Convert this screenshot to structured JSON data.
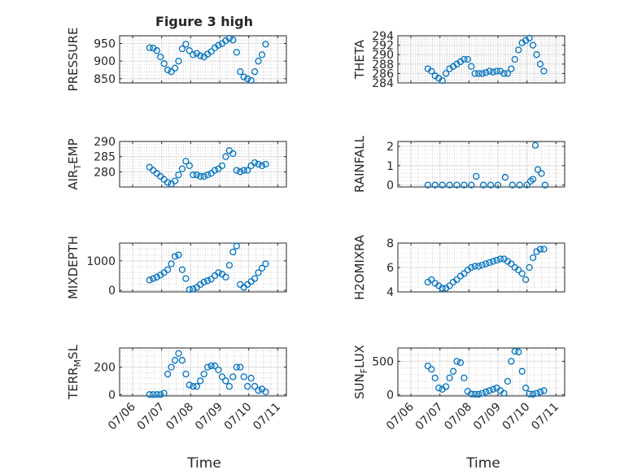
{
  "title": "Figure 3 high",
  "xlabel": "Time",
  "xticks": [
    "07/06",
    "07/07",
    "07/08",
    "07/09",
    "07/10",
    "07/11"
  ],
  "marker_color": "#0072BD",
  "chart_data": [
    {
      "type": "scatter",
      "ylabel": "PRESSURE",
      "ylim": [
        838,
        972
      ],
      "yticks": [
        850,
        900,
        950
      ],
      "grid": true,
      "x": [
        "07/06 14:00",
        "07/06 17:00",
        "07/06 20:00",
        "07/06 23:00",
        "07/07 02:00",
        "07/07 05:00",
        "07/07 08:00",
        "07/07 11:00",
        "07/07 14:00",
        "07/07 17:00",
        "07/07 20:00",
        "07/07 23:00",
        "07/08 02:00",
        "07/08 05:00",
        "07/08 08:00",
        "07/08 11:00",
        "07/08 14:00",
        "07/08 17:00",
        "07/08 20:00",
        "07/08 23:00",
        "07/09 02:00",
        "07/09 05:00",
        "07/09 08:00",
        "07/09 11:00",
        "07/09 14:00",
        "07/09 17:00",
        "07/09 20:00",
        "07/09 23:00",
        "07/10 02:00",
        "07/10 05:00",
        "07/10 08:00",
        "07/10 11:00",
        "07/10 14:00"
      ],
      "y": [
        938,
        937,
        930,
        912,
        893,
        875,
        870,
        880,
        900,
        935,
        948,
        930,
        918,
        922,
        915,
        912,
        920,
        927,
        938,
        945,
        950,
        958,
        965,
        960,
        925,
        870,
        855,
        850,
        845,
        870,
        900,
        918,
        948
      ]
    },
    {
      "type": "scatter",
      "ylabel": "THETA",
      "ylim": [
        284,
        294
      ],
      "yticks": [
        284,
        286,
        288,
        290,
        292,
        294
      ],
      "grid": true,
      "x": [
        "07/06 14:00",
        "07/06 17:00",
        "07/06 20:00",
        "07/06 23:00",
        "07/07 02:00",
        "07/07 05:00",
        "07/07 08:00",
        "07/07 11:00",
        "07/07 14:00",
        "07/07 17:00",
        "07/07 20:00",
        "07/07 23:00",
        "07/08 02:00",
        "07/08 05:00",
        "07/08 08:00",
        "07/08 11:00",
        "07/08 14:00",
        "07/08 17:00",
        "07/08 20:00",
        "07/08 23:00",
        "07/09 02:00",
        "07/09 05:00",
        "07/09 08:00",
        "07/09 11:00",
        "07/09 14:00",
        "07/09 17:00",
        "07/09 20:00",
        "07/09 23:00",
        "07/10 02:00",
        "07/10 05:00",
        "07/10 08:00",
        "07/10 11:00",
        "07/10 14:00"
      ],
      "y": [
        287,
        286.5,
        285.5,
        285,
        284.5,
        286,
        287,
        287.5,
        288,
        288.5,
        289,
        289,
        287.5,
        286,
        286,
        286,
        286.2,
        286.5,
        286.3,
        286.5,
        286.5,
        286,
        286,
        287,
        289,
        291,
        292.5,
        293,
        293.5,
        292,
        290,
        288,
        286.5
      ]
    },
    {
      "type": "scatter",
      "ylabel": "AIR_TEMP",
      "ylim": [
        275,
        290
      ],
      "yticks": [
        280,
        285,
        290
      ],
      "grid": true,
      "x": [
        "07/06 14:00",
        "07/06 17:00",
        "07/06 20:00",
        "07/06 23:00",
        "07/07 02:00",
        "07/07 05:00",
        "07/07 08:00",
        "07/07 11:00",
        "07/07 14:00",
        "07/07 17:00",
        "07/07 20:00",
        "07/07 23:00",
        "07/08 02:00",
        "07/08 05:00",
        "07/08 08:00",
        "07/08 11:00",
        "07/08 14:00",
        "07/08 17:00",
        "07/08 20:00",
        "07/08 23:00",
        "07/09 02:00",
        "07/09 05:00",
        "07/09 08:00",
        "07/09 11:00",
        "07/09 14:00",
        "07/09 17:00",
        "07/09 20:00",
        "07/09 23:00",
        "07/10 02:00",
        "07/10 05:00",
        "07/10 08:00",
        "07/10 11:00",
        "07/10 14:00"
      ],
      "y": [
        281.5,
        280.5,
        279.5,
        278.5,
        277.5,
        276.5,
        276,
        277,
        279,
        281,
        283.5,
        282,
        279,
        279,
        278.5,
        278.5,
        279,
        279.5,
        280.5,
        281,
        282,
        285,
        287,
        286,
        280.5,
        280,
        280.5,
        280.5,
        282,
        283,
        282.5,
        282,
        282.5
      ]
    },
    {
      "type": "scatter",
      "ylabel": "RAINFALL",
      "ylim": [
        -0.1,
        2.25
      ],
      "yticks": [
        0,
        1,
        2
      ],
      "grid": true,
      "x": [
        "07/06 14:00",
        "07/06 20:00",
        "07/07 02:00",
        "07/07 08:00",
        "07/07 14:00",
        "07/07 20:00",
        "07/08 02:00",
        "07/08 06:00",
        "07/08 12:00",
        "07/08 18:00",
        "07/09 00:00",
        "07/09 06:00",
        "07/09 12:00",
        "07/09 18:00",
        "07/10 00:00",
        "07/10 03:00",
        "07/10 05:00",
        "07/10 07:00",
        "07/10 09:00",
        "07/10 12:00",
        "07/10 15:00"
      ],
      "y": [
        0,
        0,
        0,
        0,
        0,
        0,
        0,
        0.45,
        0,
        0,
        0,
        0.4,
        0,
        0,
        0,
        0.2,
        0.3,
        2.05,
        0.8,
        0.6,
        0
      ]
    },
    {
      "type": "scatter",
      "ylabel": "MIXDEPTH",
      "ylim": [
        -50,
        1600
      ],
      "yticks": [
        0,
        1000
      ],
      "grid": true,
      "x": [
        "07/06 14:00",
        "07/06 17:00",
        "07/06 20:00",
        "07/06 23:00",
        "07/07 02:00",
        "07/07 05:00",
        "07/07 08:00",
        "07/07 11:00",
        "07/07 14:00",
        "07/07 17:00",
        "07/07 20:00",
        "07/07 23:00",
        "07/08 02:00",
        "07/08 05:00",
        "07/08 08:00",
        "07/08 11:00",
        "07/08 14:00",
        "07/08 17:00",
        "07/08 20:00",
        "07/08 23:00",
        "07/09 02:00",
        "07/09 05:00",
        "07/09 08:00",
        "07/09 11:00",
        "07/09 14:00",
        "07/09 17:00",
        "07/09 20:00",
        "07/09 23:00",
        "07/10 02:00",
        "07/10 05:00",
        "07/10 08:00",
        "07/10 11:00",
        "07/10 14:00"
      ],
      "y": [
        350,
        400,
        450,
        520,
        600,
        700,
        900,
        1150,
        1200,
        700,
        400,
        30,
        50,
        100,
        200,
        280,
        330,
        380,
        500,
        600,
        550,
        450,
        850,
        1300,
        1500,
        200,
        100,
        200,
        300,
        400,
        600,
        750,
        900
      ]
    },
    {
      "type": "scatter",
      "ylabel": "H2OMIXRA",
      "ylim": [
        4,
        8
      ],
      "yticks": [
        4,
        6,
        8
      ],
      "grid": true,
      "x": [
        "07/06 14:00",
        "07/06 17:00",
        "07/06 20:00",
        "07/06 23:00",
        "07/07 02:00",
        "07/07 05:00",
        "07/07 08:00",
        "07/07 11:00",
        "07/07 14:00",
        "07/07 17:00",
        "07/07 20:00",
        "07/07 23:00",
        "07/08 02:00",
        "07/08 05:00",
        "07/08 08:00",
        "07/08 11:00",
        "07/08 14:00",
        "07/08 17:00",
        "07/08 20:00",
        "07/08 23:00",
        "07/09 02:00",
        "07/09 05:00",
        "07/09 08:00",
        "07/09 11:00",
        "07/09 14:00",
        "07/09 17:00",
        "07/09 20:00",
        "07/09 23:00",
        "07/10 02:00",
        "07/10 05:00",
        "07/10 08:00",
        "07/10 11:00",
        "07/10 14:00"
      ],
      "y": [
        4.8,
        5,
        4.7,
        4.5,
        4.3,
        4.3,
        4.5,
        4.8,
        5,
        5.3,
        5.5,
        5.8,
        6,
        6.1,
        6.1,
        6.2,
        6.3,
        6.4,
        6.5,
        6.6,
        6.7,
        6.7,
        6.5,
        6.3,
        6,
        5.8,
        5.5,
        5,
        6,
        6.8,
        7.3,
        7.5,
        7.5
      ]
    },
    {
      "type": "scatter",
      "ylabel": "TERR_MSL",
      "ylim": [
        -10,
        340
      ],
      "yticks": [
        0,
        200
      ],
      "grid": true,
      "x": [
        "07/06 14:00",
        "07/06 17:00",
        "07/06 20:00",
        "07/06 23:00",
        "07/07 02:00",
        "07/07 05:00",
        "07/07 08:00",
        "07/07 11:00",
        "07/07 14:00",
        "07/07 17:00",
        "07/07 20:00",
        "07/07 23:00",
        "07/08 02:00",
        "07/08 05:00",
        "07/08 08:00",
        "07/08 11:00",
        "07/08 14:00",
        "07/08 17:00",
        "07/08 20:00",
        "07/08 23:00",
        "07/09 02:00",
        "07/09 05:00",
        "07/09 08:00",
        "07/09 11:00",
        "07/09 14:00",
        "07/09 17:00",
        "07/09 20:00",
        "07/09 23:00",
        "07/10 02:00",
        "07/10 05:00",
        "07/10 08:00",
        "07/10 11:00",
        "07/10 14:00"
      ],
      "y": [
        0,
        0,
        0,
        0,
        10,
        150,
        200,
        250,
        300,
        250,
        150,
        70,
        60,
        60,
        100,
        150,
        200,
        210,
        210,
        180,
        130,
        100,
        60,
        130,
        200,
        200,
        130,
        60,
        120,
        60,
        30,
        40,
        20
      ]
    },
    {
      "type": "scatter",
      "ylabel": "SUN_FLUX",
      "ylim": [
        -20,
        700
      ],
      "yticks": [
        0,
        500
      ],
      "grid": true,
      "x": [
        "07/06 14:00",
        "07/06 17:00",
        "07/06 20:00",
        "07/06 23:00",
        "07/07 02:00",
        "07/07 05:00",
        "07/07 08:00",
        "07/07 11:00",
        "07/07 14:00",
        "07/07 17:00",
        "07/07 20:00",
        "07/07 23:00",
        "07/08 02:00",
        "07/08 05:00",
        "07/08 08:00",
        "07/08 11:00",
        "07/08 14:00",
        "07/08 17:00",
        "07/08 20:00",
        "07/08 23:00",
        "07/09 02:00",
        "07/09 05:00",
        "07/09 08:00",
        "07/09 11:00",
        "07/09 14:00",
        "07/09 17:00",
        "07/09 20:00",
        "07/09 23:00",
        "07/10 02:00",
        "07/10 05:00",
        "07/10 08:00",
        "07/10 11:00",
        "07/10 14:00"
      ],
      "y": [
        430,
        380,
        250,
        100,
        80,
        120,
        250,
        350,
        500,
        480,
        250,
        50,
        10,
        5,
        5,
        20,
        40,
        60,
        80,
        100,
        60,
        20,
        200,
        500,
        650,
        640,
        350,
        100,
        10,
        5,
        20,
        40,
        60
      ]
    }
  ]
}
